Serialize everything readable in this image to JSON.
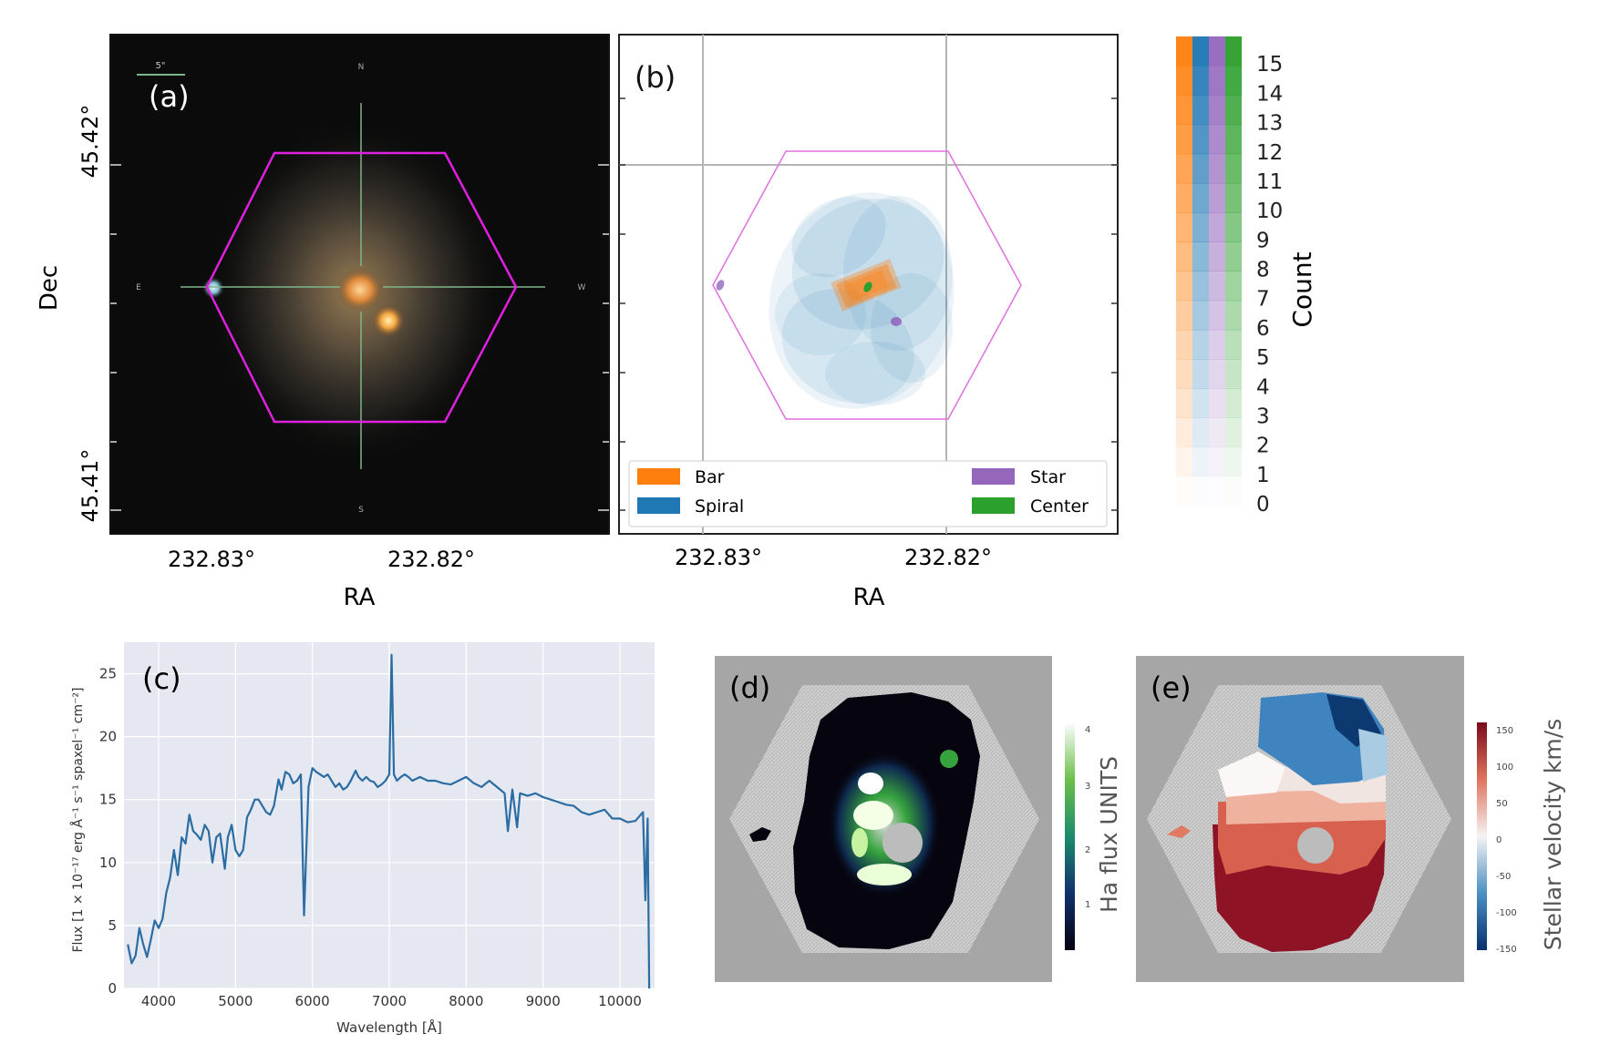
{
  "figure": {
    "panel_a": {
      "tag": "(a)",
      "xlabel": "RA",
      "ylabel": "Dec",
      "x_ticks": [
        "232.83°",
        "232.82°"
      ],
      "y_ticks": [
        "45.42°",
        "45.41°"
      ],
      "compass": {
        "north": "N",
        "south": "S",
        "east": "E",
        "west": "W"
      },
      "scale_bar": "5\""
    },
    "panel_b": {
      "tag": "(b)",
      "xlabel": "RA",
      "x_ticks": [
        "232.83°",
        "232.82°"
      ],
      "legend": [
        {
          "label": "Bar",
          "color": "#ff7f0e"
        },
        {
          "label": "Star",
          "color": "#9467bd"
        },
        {
          "label": "Spiral",
          "color": "#1f77b4"
        },
        {
          "label": "Center",
          "color": "#2ca02c"
        }
      ],
      "colorbar": {
        "label": "Count",
        "ticks": [
          "0",
          "1",
          "2",
          "3",
          "4",
          "5",
          "6",
          "7",
          "8",
          "9",
          "10",
          "11",
          "12",
          "13",
          "14",
          "15"
        ],
        "colors": [
          "#ff7f0e",
          "#1f77b4",
          "#9467bd",
          "#2ca02c"
        ]
      }
    },
    "panel_d": {
      "tag": "(d)",
      "colorbar_label": "Ha flux UNITS",
      "colorbar_ticks": [
        "1",
        "2",
        "3",
        "4"
      ]
    },
    "panel_e": {
      "tag": "(e)",
      "colorbar_label": "Stellar velocity km/s",
      "colorbar_ticks": [
        "150",
        "100",
        "50",
        "0",
        "-50",
        "-100",
        "-150"
      ]
    },
    "colors": {
      "magenta_hexagon": "#e020e0",
      "spectrum_line": "#2b6ca3",
      "plot_bg": "#e5e8f0",
      "map_grey": "#a6a6a6"
    }
  },
  "chart_data": {
    "type": "line",
    "panel": "(c)",
    "title": "",
    "xlabel": "Wavelength [Å]",
    "ylabel": "Flux [1 × 10⁻¹⁷ erg Å⁻¹ s⁻¹ spaxel⁻¹ cm⁻²]",
    "xlim": [
      3550,
      10450
    ],
    "ylim": [
      0,
      27.5
    ],
    "x_ticks": [
      4000,
      5000,
      6000,
      7000,
      8000,
      9000,
      10000
    ],
    "y_ticks": [
      0,
      5,
      10,
      15,
      20,
      25
    ],
    "grid": true,
    "series": [
      {
        "name": "spectrum",
        "x": [
          3600,
          3650,
          3700,
          3750,
          3800,
          3850,
          3900,
          3950,
          4000,
          4050,
          4100,
          4150,
          4200,
          4250,
          4300,
          4350,
          4400,
          4450,
          4500,
          4550,
          4600,
          4650,
          4700,
          4750,
          4800,
          4861,
          4900,
          4950,
          5000,
          5050,
          5100,
          5150,
          5200,
          5250,
          5300,
          5350,
          5400,
          5450,
          5500,
          5560,
          5600,
          5650,
          5700,
          5750,
          5800,
          5850,
          5892,
          5950,
          6000,
          6050,
          6100,
          6150,
          6200,
          6250,
          6300,
          6350,
          6400,
          6450,
          6500,
          6563,
          6600,
          6650,
          6700,
          6750,
          6800,
          6850,
          6900,
          6950,
          7000,
          7030,
          7060,
          7100,
          7150,
          7200,
          7250,
          7300,
          7400,
          7500,
          7600,
          7700,
          7800,
          7900,
          8000,
          8100,
          8200,
          8300,
          8400,
          8500,
          8542,
          8600,
          8662,
          8700,
          8800,
          8900,
          9000,
          9100,
          9200,
          9300,
          9400,
          9500,
          9600,
          9700,
          9800,
          9900,
          10000,
          10100,
          10200,
          10300,
          10330,
          10360,
          10380
        ],
        "y": [
          3.5,
          2.0,
          2.6,
          4.8,
          3.5,
          2.5,
          3.9,
          5.4,
          4.8,
          5.5,
          7.6,
          8.8,
          11.0,
          9.0,
          12.0,
          11.5,
          13.8,
          12.5,
          12.2,
          11.8,
          13.0,
          12.5,
          10.0,
          12.0,
          12.3,
          9.5,
          12.0,
          13.0,
          11.0,
          10.5,
          11.0,
          13.6,
          14.2,
          15.0,
          15.0,
          14.5,
          14.0,
          13.8,
          14.5,
          16.6,
          15.8,
          17.2,
          17.0,
          16.3,
          16.5,
          17.0,
          5.8,
          16.0,
          17.5,
          17.2,
          17.0,
          16.8,
          17.0,
          16.5,
          16.0,
          16.3,
          15.8,
          16.0,
          16.5,
          17.3,
          16.8,
          16.5,
          16.8,
          16.5,
          16.4,
          16.0,
          16.2,
          16.5,
          17.0,
          26.5,
          17.0,
          16.5,
          16.8,
          17.0,
          16.8,
          16.5,
          16.8,
          16.5,
          16.5,
          16.3,
          16.2,
          16.5,
          16.8,
          16.3,
          16.0,
          16.5,
          16.0,
          15.5,
          12.5,
          15.8,
          12.8,
          15.5,
          15.3,
          15.5,
          15.2,
          15.0,
          14.8,
          14.6,
          14.5,
          14.0,
          13.8,
          14.0,
          14.2,
          13.5,
          13.5,
          13.2,
          13.3,
          14.0,
          7.0,
          13.5,
          0.0
        ]
      }
    ]
  }
}
